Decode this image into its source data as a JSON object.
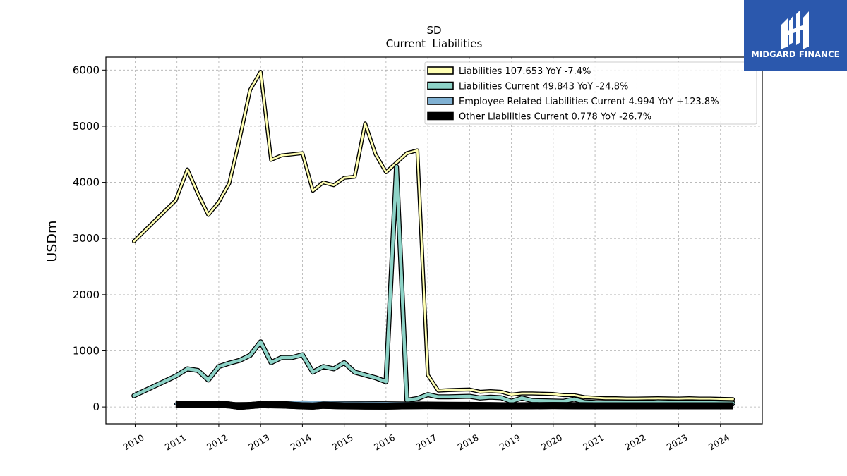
{
  "brand": {
    "name": "MIDGARD FINANCE",
    "bg": "#2b58ad"
  },
  "chart_data": {
    "type": "line",
    "title": "SD",
    "subtitle": "Current  Liabilities",
    "ylabel": "USDm",
    "xlabel": "",
    "ylim": [
      -300,
      6230
    ],
    "xlim": [
      2009.3,
      2025.0
    ],
    "yticks": [
      0,
      1000,
      2000,
      3000,
      4000,
      5000,
      6000
    ],
    "xticks": [
      "2010",
      "2011",
      "2012",
      "2013",
      "2014",
      "2015",
      "2016",
      "2017",
      "2018",
      "2019",
      "2020",
      "2021",
      "2022",
      "2023",
      "2024"
    ],
    "grid": true,
    "legend_position": "top-right",
    "series": [
      {
        "name": "Liabilities  107.653 YoY -7.4%",
        "color": "#ffffb3",
        "points": [
          [
            2009.97,
            2950
          ],
          [
            2010.97,
            3680
          ],
          [
            2011.25,
            4230
          ],
          [
            2011.5,
            3800
          ],
          [
            2011.75,
            3420
          ],
          [
            2012.0,
            3650
          ],
          [
            2012.25,
            3980
          ],
          [
            2012.5,
            4780
          ],
          [
            2012.75,
            5650
          ],
          [
            2013.0,
            5970
          ],
          [
            2013.25,
            4400
          ],
          [
            2013.5,
            4480
          ],
          [
            2013.75,
            4500
          ],
          [
            2014.0,
            4520
          ],
          [
            2014.25,
            3850
          ],
          [
            2014.5,
            4000
          ],
          [
            2014.75,
            3950
          ],
          [
            2015.0,
            4080
          ],
          [
            2015.25,
            4100
          ],
          [
            2015.5,
            5050
          ],
          [
            2015.75,
            4500
          ],
          [
            2016.0,
            4180
          ],
          [
            2016.25,
            4350
          ],
          [
            2016.5,
            4520
          ],
          [
            2016.75,
            4570
          ],
          [
            2017.0,
            570
          ],
          [
            2017.25,
            290
          ],
          [
            2017.5,
            300
          ],
          [
            2017.75,
            305
          ],
          [
            2018.0,
            310
          ],
          [
            2018.25,
            270
          ],
          [
            2018.5,
            280
          ],
          [
            2018.75,
            270
          ],
          [
            2019.0,
            220
          ],
          [
            2019.25,
            240
          ],
          [
            2019.5,
            240
          ],
          [
            2019.75,
            235
          ],
          [
            2020.0,
            230
          ],
          [
            2020.25,
            210
          ],
          [
            2020.5,
            210
          ],
          [
            2020.75,
            175
          ],
          [
            2021.0,
            165
          ],
          [
            2021.25,
            155
          ],
          [
            2021.5,
            155
          ],
          [
            2021.75,
            150
          ],
          [
            2022.0,
            150
          ],
          [
            2022.25,
            152
          ],
          [
            2022.5,
            155
          ],
          [
            2022.75,
            152
          ],
          [
            2023.0,
            150
          ],
          [
            2023.25,
            155
          ],
          [
            2023.5,
            150
          ],
          [
            2023.75,
            150
          ],
          [
            2024.0,
            145
          ],
          [
            2024.3,
            140
          ]
        ]
      },
      {
        "name": "Liabilities Current  49.843 YoY -24.8%",
        "color": "#8dd3c7",
        "points": [
          [
            2009.97,
            200
          ],
          [
            2010.97,
            550
          ],
          [
            2011.25,
            680
          ],
          [
            2011.5,
            650
          ],
          [
            2011.75,
            480
          ],
          [
            2012.0,
            720
          ],
          [
            2012.25,
            780
          ],
          [
            2012.5,
            830
          ],
          [
            2012.75,
            920
          ],
          [
            2013.0,
            1160
          ],
          [
            2013.25,
            790
          ],
          [
            2013.5,
            880
          ],
          [
            2013.75,
            880
          ],
          [
            2014.0,
            930
          ],
          [
            2014.25,
            620
          ],
          [
            2014.5,
            720
          ],
          [
            2014.75,
            680
          ],
          [
            2015.0,
            790
          ],
          [
            2015.25,
            620
          ],
          [
            2015.5,
            570
          ],
          [
            2015.75,
            520
          ],
          [
            2016.0,
            450
          ],
          [
            2016.25,
            4280
          ],
          [
            2016.5,
            120
          ],
          [
            2016.75,
            150
          ],
          [
            2017.0,
            220
          ],
          [
            2017.25,
            180
          ],
          [
            2017.5,
            180
          ],
          [
            2017.75,
            185
          ],
          [
            2018.0,
            190
          ],
          [
            2018.25,
            160
          ],
          [
            2018.5,
            175
          ],
          [
            2018.75,
            165
          ],
          [
            2019.0,
            100
          ],
          [
            2019.25,
            160
          ],
          [
            2019.5,
            115
          ],
          [
            2019.75,
            110
          ],
          [
            2020.0,
            105
          ],
          [
            2020.25,
            100
          ],
          [
            2020.5,
            140
          ],
          [
            2020.75,
            90
          ],
          [
            2021.0,
            80
          ],
          [
            2021.25,
            75
          ],
          [
            2021.5,
            75
          ],
          [
            2021.75,
            75
          ],
          [
            2022.0,
            75
          ],
          [
            2022.25,
            78
          ],
          [
            2022.5,
            90
          ],
          [
            2022.75,
            85
          ],
          [
            2023.0,
            80
          ],
          [
            2023.25,
            82
          ],
          [
            2023.5,
            75
          ],
          [
            2023.75,
            75
          ],
          [
            2024.0,
            70
          ],
          [
            2024.3,
            65
          ]
        ]
      },
      {
        "name": "Employee Related Liabilities Current  4.994 YoY +123.8%",
        "color": "#80b1d3",
        "points": [
          [
            2010.97,
            55
          ],
          [
            2011.5,
            60
          ],
          [
            2012.0,
            60
          ],
          [
            2012.5,
            62
          ],
          [
            2013.0,
            65
          ],
          [
            2013.5,
            78
          ],
          [
            2014.0,
            90
          ],
          [
            2014.5,
            85
          ],
          [
            2015.0,
            80
          ],
          [
            2015.5,
            78
          ],
          [
            2016.0,
            75
          ],
          [
            2016.5,
            72
          ],
          [
            2017.0,
            70
          ],
          [
            2017.5,
            68
          ],
          [
            2018.0,
            65
          ],
          [
            2018.5,
            60
          ],
          [
            2019.0,
            55
          ],
          [
            2019.5,
            50
          ],
          [
            2020.0,
            48
          ],
          [
            2020.5,
            45
          ],
          [
            2021.0,
            42
          ],
          [
            2021.5,
            40
          ],
          [
            2022.0,
            40
          ],
          [
            2022.5,
            40
          ],
          [
            2023.0,
            38
          ],
          [
            2023.5,
            38
          ],
          [
            2024.0,
            38
          ],
          [
            2024.3,
            38
          ]
        ]
      },
      {
        "name": "Other Liabilities Current  0.778 YoY -26.7%",
        "color": "#000000",
        "points": [
          [
            2010.97,
            40
          ],
          [
            2011.5,
            42
          ],
          [
            2012.0,
            45
          ],
          [
            2012.25,
            35
          ],
          [
            2012.5,
            10
          ],
          [
            2013.0,
            40
          ],
          [
            2013.5,
            35
          ],
          [
            2014.0,
            20
          ],
          [
            2014.25,
            15
          ],
          [
            2014.5,
            30
          ],
          [
            2015.0,
            20
          ],
          [
            2015.5,
            18
          ],
          [
            2016.0,
            15
          ],
          [
            2016.5,
            22
          ],
          [
            2017.0,
            25
          ],
          [
            2017.5,
            22
          ],
          [
            2018.0,
            20
          ],
          [
            2018.5,
            22
          ],
          [
            2019.0,
            20
          ],
          [
            2019.5,
            22
          ],
          [
            2020.0,
            25
          ],
          [
            2020.5,
            22
          ],
          [
            2021.0,
            20
          ],
          [
            2021.5,
            20
          ],
          [
            2022.0,
            20
          ],
          [
            2022.5,
            20
          ],
          [
            2023.0,
            20
          ],
          [
            2023.5,
            20
          ],
          [
            2024.0,
            20
          ],
          [
            2024.3,
            20
          ]
        ]
      }
    ]
  }
}
